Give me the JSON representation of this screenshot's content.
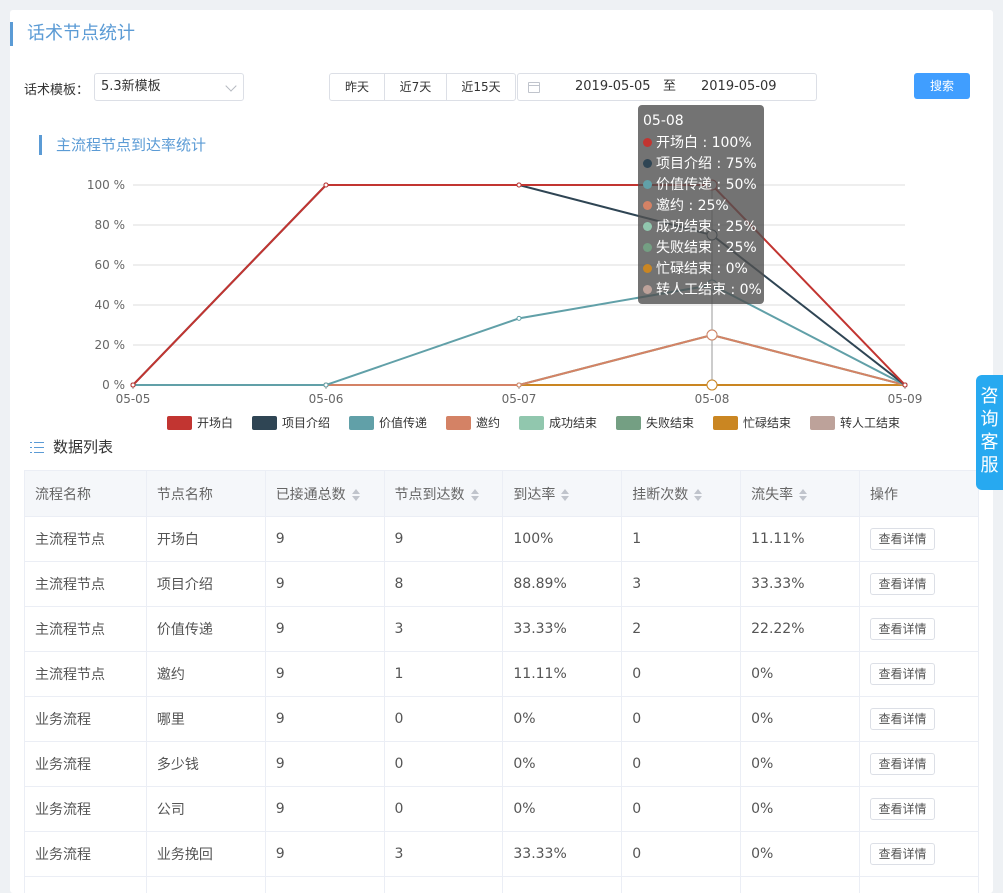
{
  "page": {
    "title": "话术节点统计"
  },
  "filters": {
    "template_label": "话术模板：",
    "template_value": "5.3新模板",
    "quick_buttons": [
      "昨天",
      "近7天",
      "近15天"
    ],
    "date_start": "2019-05-05",
    "date_sep": "至",
    "date_end": "2019-05-09",
    "search_label": "搜索"
  },
  "chart_section": {
    "title": "主流程节点到达率统计"
  },
  "chart_data": {
    "type": "line",
    "categories": [
      "05-05",
      "05-06",
      "05-07",
      "05-08",
      "05-09"
    ],
    "y_ticks": [
      "0 %",
      "20 %",
      "40 %",
      "60 %",
      "80 %",
      "100 %"
    ],
    "ylim": [
      0,
      100
    ],
    "legend_position": "bottom",
    "series": [
      {
        "name": "开场白",
        "color": "#c23531",
        "values": [
          0,
          100,
          100,
          100,
          0
        ]
      },
      {
        "name": "项目介绍",
        "color": "#2f4554",
        "values": [
          0,
          100,
          100,
          75,
          0
        ]
      },
      {
        "name": "价值传递",
        "color": "#61a0a8",
        "values": [
          0,
          0,
          33.33,
          50,
          0
        ]
      },
      {
        "name": "邀约",
        "color": "#d48265",
        "values": [
          0,
          0,
          0,
          25,
          0
        ]
      },
      {
        "name": "成功结束",
        "color": "#91c7ae",
        "values": [
          0,
          0,
          0,
          25,
          0
        ]
      },
      {
        "name": "失败结束",
        "color": "#749f83",
        "values": [
          0,
          0,
          0,
          25,
          0
        ]
      },
      {
        "name": "忙碌结束",
        "color": "#ca8622",
        "values": [
          0,
          0,
          0,
          0,
          0
        ]
      },
      {
        "name": "转人工结束",
        "color": "#bda29a",
        "values": [
          0,
          0,
          0,
          0,
          0
        ]
      }
    ],
    "tooltip": {
      "title": "05-08",
      "rows": [
        {
          "text": "开场白 : 100%",
          "color": "#c23531"
        },
        {
          "text": "项目介绍 : 75%",
          "color": "#2f4554"
        },
        {
          "text": "价值传递 : 50%",
          "color": "#61a0a8"
        },
        {
          "text": "邀约 : 25%",
          "color": "#d48265"
        },
        {
          "text": "成功结束 : 25%",
          "color": "#91c7ae"
        },
        {
          "text": "失败结束 : 25%",
          "color": "#749f83"
        },
        {
          "text": "忙碌结束 : 0%",
          "color": "#ca8622"
        },
        {
          "text": "转人工结束 : 0%",
          "color": "#bda29a"
        }
      ]
    }
  },
  "list_section": {
    "title": "数据列表"
  },
  "table": {
    "headers": [
      "流程名称",
      "节点名称",
      "已接通总数",
      "节点到达数",
      "到达率",
      "挂断次数",
      "流失率",
      "操作"
    ],
    "sortable": [
      false,
      false,
      true,
      true,
      true,
      true,
      true,
      false
    ],
    "rows": [
      [
        "主流程节点",
        "开场白",
        "9",
        "9",
        "100%",
        "1",
        "11.11%",
        "查看详情"
      ],
      [
        "主流程节点",
        "项目介绍",
        "9",
        "8",
        "88.89%",
        "3",
        "33.33%",
        "查看详情"
      ],
      [
        "主流程节点",
        "价值传递",
        "9",
        "3",
        "33.33%",
        "2",
        "22.22%",
        "查看详情"
      ],
      [
        "主流程节点",
        "邀约",
        "9",
        "1",
        "11.11%",
        "0",
        "0%",
        "查看详情"
      ],
      [
        "业务流程",
        "哪里",
        "9",
        "0",
        "0%",
        "0",
        "0%",
        "查看详情"
      ],
      [
        "业务流程",
        "多少钱",
        "9",
        "0",
        "0%",
        "0",
        "0%",
        "查看详情"
      ],
      [
        "业务流程",
        "公司",
        "9",
        "0",
        "0%",
        "0",
        "0%",
        "查看详情"
      ],
      [
        "业务流程",
        "业务挽回",
        "9",
        "3",
        "33.33%",
        "0",
        "0%",
        "查看详情"
      ],
      [
        "",
        "",
        "",
        "",
        "",
        "",
        "",
        ""
      ]
    ]
  },
  "consult": {
    "chars": [
      "咨",
      "询",
      "客",
      "服"
    ]
  }
}
